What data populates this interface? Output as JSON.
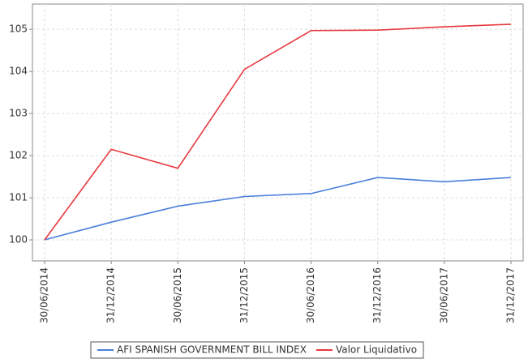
{
  "chart_data": {
    "type": "line",
    "categories": [
      "30/06/2014",
      "31/12/2014",
      "30/06/2015",
      "31/12/2015",
      "30/06/2016",
      "31/12/2016",
      "30/06/2017",
      "31/12/2017"
    ],
    "series": [
      {
        "name": "AFI SPANISH GOVERNMENT BILL INDEX",
        "color": "#4a7fdc",
        "values": [
          100,
          100.42,
          100.8,
          101.03,
          101.1,
          101.48,
          101.38,
          101.48
        ]
      },
      {
        "name": "Valor Liquidativo",
        "color": "#e8383d",
        "values": [
          100,
          102.15,
          101.7,
          104.05,
          104.97,
          104.98,
          105.06,
          105.12
        ]
      }
    ],
    "ylim": [
      99.5,
      105.6
    ],
    "yticks": [
      100,
      101,
      102,
      103,
      104,
      105
    ],
    "grid": true,
    "legend": "bottom"
  }
}
